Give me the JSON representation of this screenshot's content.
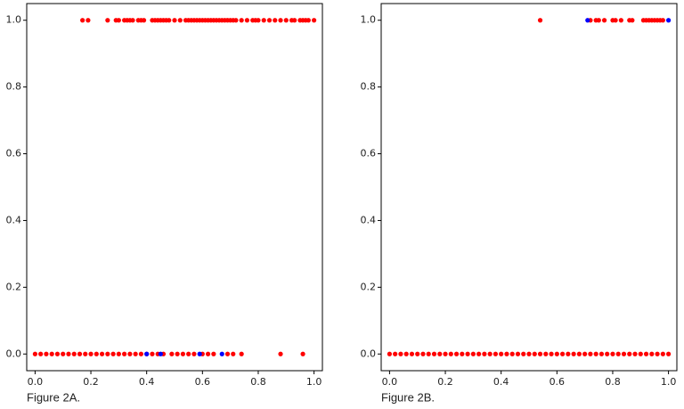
{
  "chart_data": [
    {
      "type": "scatter",
      "caption": "Figure 2A.",
      "series": [
        {
          "color": "#ff0000",
          "x": [
            0.17,
            0.19,
            0.26,
            0.29,
            0.3,
            0.32,
            0.33,
            0.34,
            0.35,
            0.37,
            0.38,
            0.39,
            0.42,
            0.43,
            0.44,
            0.45,
            0.46,
            0.47,
            0.48,
            0.5,
            0.52,
            0.54,
            0.55,
            0.56,
            0.57,
            0.58,
            0.59,
            0.6,
            0.61,
            0.62,
            0.63,
            0.64,
            0.65,
            0.66,
            0.67,
            0.68,
            0.69,
            0.7,
            0.71,
            0.72,
            0.74,
            0.76,
            0.78,
            0.79,
            0.8,
            0.82,
            0.84,
            0.86,
            0.88,
            0.9,
            0.92,
            0.93,
            0.95,
            0.96,
            0.97,
            0.98,
            1.0,
            0,
            0.02,
            0.04,
            0.06,
            0.08,
            0.1,
            0.12,
            0.14,
            0.16,
            0.18,
            0.2,
            0.22,
            0.24,
            0.26,
            0.28,
            0.3,
            0.32,
            0.34,
            0.36,
            0.38,
            0.4,
            0.42,
            0.44,
            0.46,
            0.49,
            0.51,
            0.53,
            0.55,
            0.57,
            0.6,
            0.62,
            0.64,
            0.69,
            0.71,
            0.74,
            0.88,
            0.96
          ],
          "y": [
            1,
            1,
            1,
            1,
            1,
            1,
            1,
            1,
            1,
            1,
            1,
            1,
            1,
            1,
            1,
            1,
            1,
            1,
            1,
            1,
            1,
            1,
            1,
            1,
            1,
            1,
            1,
            1,
            1,
            1,
            1,
            1,
            1,
            1,
            1,
            1,
            1,
            1,
            1,
            1,
            1,
            1,
            1,
            1,
            1,
            1,
            1,
            1,
            1,
            1,
            1,
            1,
            1,
            1,
            1,
            1,
            1,
            0,
            0,
            0,
            0,
            0,
            0,
            0,
            0,
            0,
            0,
            0,
            0,
            0,
            0,
            0,
            0,
            0,
            0,
            0,
            0,
            0,
            0,
            0,
            0,
            0,
            0,
            0,
            0,
            0,
            0,
            0,
            0,
            0,
            0,
            0,
            0,
            0
          ]
        },
        {
          "color": "#0000ff",
          "x": [
            0.4,
            0.45,
            0.59,
            0.67
          ],
          "y": [
            0,
            0,
            0,
            0
          ]
        }
      ],
      "xlim": [
        -0.03,
        1.03
      ],
      "ylim": [
        -0.05,
        1.05
      ],
      "xticks": [
        {
          "value": 0,
          "label": "0.0"
        },
        {
          "value": 0.2,
          "label": "0.2"
        },
        {
          "value": 0.4,
          "label": "0.4"
        },
        {
          "value": 0.6,
          "label": "0.6"
        },
        {
          "value": 0.8,
          "label": "0.8"
        },
        {
          "value": 1,
          "label": "1.0"
        }
      ],
      "yticks": [
        {
          "value": 0,
          "label": "0.0"
        },
        {
          "value": 0.2,
          "label": "0.2"
        },
        {
          "value": 0.4,
          "label": "0.4"
        },
        {
          "value": 0.6,
          "label": "0.6"
        },
        {
          "value": 0.8,
          "label": "0.8"
        },
        {
          "value": 1,
          "label": "1.0"
        }
      ]
    },
    {
      "type": "scatter",
      "caption": "Figure 2B.",
      "series": [
        {
          "color": "#ff0000",
          "x": [
            0.54,
            0.72,
            0.74,
            0.75,
            0.77,
            0.8,
            0.81,
            0.83,
            0.86,
            0.87,
            0.91,
            0.92,
            0.93,
            0.94,
            0.95,
            0.96,
            0.97,
            0.98,
            0,
            0.02,
            0.04,
            0.06,
            0.08,
            0.1,
            0.12,
            0.14,
            0.16,
            0.18,
            0.2,
            0.22,
            0.24,
            0.26,
            0.28,
            0.3,
            0.32,
            0.34,
            0.36,
            0.38,
            0.4,
            0.42,
            0.44,
            0.46,
            0.48,
            0.5,
            0.52,
            0.54,
            0.56,
            0.58,
            0.6,
            0.62,
            0.64,
            0.66,
            0.68,
            0.7,
            0.72,
            0.74,
            0.76,
            0.78,
            0.8,
            0.82,
            0.84,
            0.86,
            0.88,
            0.9,
            0.92,
            0.94,
            0.96,
            0.98,
            1.0
          ],
          "y": [
            1,
            1,
            1,
            1,
            1,
            1,
            1,
            1,
            1,
            1,
            1,
            1,
            1,
            1,
            1,
            1,
            1,
            1,
            0,
            0,
            0,
            0,
            0,
            0,
            0,
            0,
            0,
            0,
            0,
            0,
            0,
            0,
            0,
            0,
            0,
            0,
            0,
            0,
            0,
            0,
            0,
            0,
            0,
            0,
            0,
            0,
            0,
            0,
            0,
            0,
            0,
            0,
            0,
            0,
            0,
            0,
            0,
            0,
            0,
            0,
            0,
            0,
            0,
            0,
            0,
            0,
            0,
            0,
            0
          ]
        },
        {
          "color": "#0000ff",
          "x": [
            0.71,
            1.0
          ],
          "y": [
            1,
            1
          ]
        }
      ],
      "xlim": [
        -0.03,
        1.03
      ],
      "ylim": [
        -0.05,
        1.05
      ],
      "xticks": [
        {
          "value": 0,
          "label": "0.0"
        },
        {
          "value": 0.2,
          "label": "0.2"
        },
        {
          "value": 0.4,
          "label": "0.4"
        },
        {
          "value": 0.6,
          "label": "0.6"
        },
        {
          "value": 0.8,
          "label": "0.8"
        },
        {
          "value": 1,
          "label": "1.0"
        }
      ],
      "yticks": [
        {
          "value": 0,
          "label": "0.0"
        },
        {
          "value": 0.2,
          "label": "0.2"
        },
        {
          "value": 0.4,
          "label": "0.4"
        },
        {
          "value": 0.6,
          "label": "0.6"
        },
        {
          "value": 0.8,
          "label": "0.8"
        },
        {
          "value": 1,
          "label": "1.0"
        }
      ]
    }
  ]
}
